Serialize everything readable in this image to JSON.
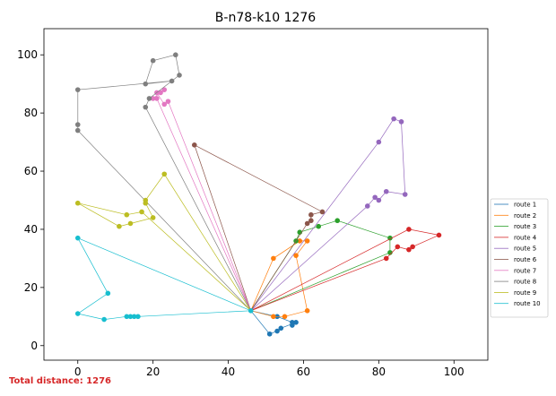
{
  "chart_data": {
    "type": "scatter",
    "title": "B-n78-k10 1276",
    "xlabel": "",
    "ylabel": "",
    "xlim": [
      -9,
      109
    ],
    "ylim": [
      -5,
      109
    ],
    "xticks": [
      0,
      20,
      40,
      60,
      80,
      100
    ],
    "yticks": [
      0,
      20,
      40,
      60,
      80,
      100
    ],
    "grid": false,
    "legend_position": "right",
    "depot": [
      46,
      12
    ],
    "routes": [
      {
        "name": "route 1",
        "color": "#1f77b4",
        "points": [
          [
            46,
            12
          ],
          [
            53,
            10
          ],
          [
            57,
            8
          ],
          [
            57,
            7
          ],
          [
            58,
            8
          ],
          [
            54,
            6
          ],
          [
            53,
            5
          ],
          [
            51,
            4
          ],
          [
            46,
            12
          ]
        ]
      },
      {
        "name": "route 2",
        "color": "#ff7f0e",
        "points": [
          [
            46,
            12
          ],
          [
            52,
            10
          ],
          [
            55,
            10
          ],
          [
            61,
            12
          ],
          [
            58,
            31
          ],
          [
            61,
            36
          ],
          [
            59,
            36
          ],
          [
            52,
            30
          ],
          [
            46,
            12
          ]
        ]
      },
      {
        "name": "route 3",
        "color": "#2ca02c",
        "points": [
          [
            46,
            12
          ],
          [
            58,
            36
          ],
          [
            59,
            39
          ],
          [
            64,
            41
          ],
          [
            69,
            43
          ],
          [
            83,
            37
          ],
          [
            83,
            32
          ],
          [
            46,
            12
          ]
        ]
      },
      {
        "name": "route 4",
        "color": "#d62728",
        "points": [
          [
            46,
            12
          ],
          [
            82,
            30
          ],
          [
            85,
            34
          ],
          [
            88,
            33
          ],
          [
            89,
            34
          ],
          [
            96,
            38
          ],
          [
            88,
            40
          ],
          [
            46,
            12
          ]
        ]
      },
      {
        "name": "route 5",
        "color": "#9467bd",
        "points": [
          [
            46,
            12
          ],
          [
            77,
            48
          ],
          [
            79,
            51
          ],
          [
            80,
            50
          ],
          [
            82,
            53
          ],
          [
            87,
            52
          ],
          [
            86,
            77
          ],
          [
            84,
            78
          ],
          [
            80,
            70
          ],
          [
            46,
            12
          ]
        ]
      },
      {
        "name": "route 6",
        "color": "#8c564b",
        "points": [
          [
            46,
            12
          ],
          [
            61,
            42
          ],
          [
            62,
            43
          ],
          [
            62,
            45
          ],
          [
            65,
            46
          ],
          [
            31,
            69
          ],
          [
            46,
            12
          ]
        ]
      },
      {
        "name": "route 7",
        "color": "#e377c2",
        "points": [
          [
            46,
            12
          ],
          [
            21,
            85
          ],
          [
            20,
            85
          ],
          [
            22,
            87
          ],
          [
            23,
            88
          ],
          [
            21,
            87
          ],
          [
            23,
            83
          ],
          [
            24,
            84
          ],
          [
            46,
            12
          ]
        ]
      },
      {
        "name": "route 8",
        "color": "#7f7f7f",
        "points": [
          [
            46,
            12
          ],
          [
            18,
            82
          ],
          [
            19,
            85
          ],
          [
            27,
            93
          ],
          [
            26,
            100
          ],
          [
            20,
            98
          ],
          [
            18,
            90
          ],
          [
            25,
            91
          ],
          [
            0,
            88
          ],
          [
            0,
            76
          ],
          [
            0,
            74
          ],
          [
            46,
            12
          ]
        ]
      },
      {
        "name": "route 9",
        "color": "#bcbd22",
        "points": [
          [
            46,
            12
          ],
          [
            23,
            59
          ],
          [
            18,
            50
          ],
          [
            18,
            49
          ],
          [
            20,
            44
          ],
          [
            14,
            42
          ],
          [
            11,
            41
          ],
          [
            0,
            49
          ],
          [
            13,
            45
          ],
          [
            17,
            46
          ],
          [
            46,
            12
          ]
        ]
      },
      {
        "name": "route 10",
        "color": "#17becf",
        "points": [
          [
            46,
            12
          ],
          [
            16,
            10
          ],
          [
            15,
            10
          ],
          [
            14,
            10
          ],
          [
            13,
            10
          ],
          [
            7,
            9
          ],
          [
            0,
            11
          ],
          [
            8,
            18
          ],
          [
            0,
            37
          ],
          [
            46,
            12
          ]
        ]
      }
    ]
  },
  "total_distance_label": "Total distance: 1276"
}
